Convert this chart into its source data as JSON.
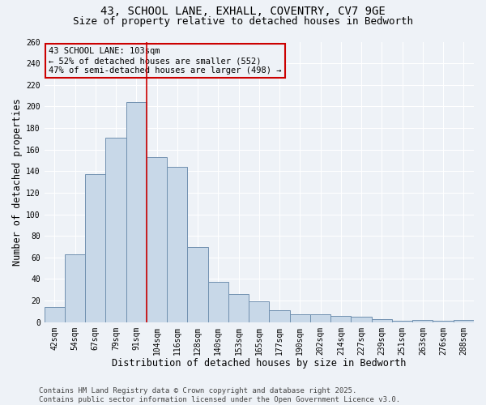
{
  "title1": "43, SCHOOL LANE, EXHALL, COVENTRY, CV7 9GE",
  "title2": "Size of property relative to detached houses in Bedworth",
  "xlabel": "Distribution of detached houses by size in Bedworth",
  "ylabel": "Number of detached properties",
  "categories": [
    "42sqm",
    "54sqm",
    "67sqm",
    "79sqm",
    "91sqm",
    "104sqm",
    "116sqm",
    "128sqm",
    "140sqm",
    "153sqm",
    "165sqm",
    "177sqm",
    "190sqm",
    "202sqm",
    "214sqm",
    "227sqm",
    "239sqm",
    "251sqm",
    "263sqm",
    "276sqm",
    "288sqm"
  ],
  "values": [
    14,
    63,
    137,
    171,
    204,
    153,
    144,
    70,
    37,
    26,
    19,
    11,
    7,
    7,
    6,
    5,
    3,
    1,
    2,
    1,
    2
  ],
  "bar_color": "#c8d8e8",
  "bar_edge_color": "#7090b0",
  "subject_line_color": "#cc0000",
  "annotation_text": "43 SCHOOL LANE: 103sqm\n← 52% of detached houses are smaller (552)\n47% of semi-detached houses are larger (498) →",
  "annotation_box_color": "#cc0000",
  "annotation_text_color": "#000000",
  "ylim": [
    0,
    260
  ],
  "yticks": [
    0,
    20,
    40,
    60,
    80,
    100,
    120,
    140,
    160,
    180,
    200,
    220,
    240,
    260
  ],
  "background_color": "#eef2f7",
  "grid_color": "#ffffff",
  "footer1": "Contains HM Land Registry data © Crown copyright and database right 2025.",
  "footer2": "Contains public sector information licensed under the Open Government Licence v3.0.",
  "title_fontsize": 10,
  "subtitle_fontsize": 9,
  "axis_label_fontsize": 8.5,
  "tick_fontsize": 7,
  "annotation_fontsize": 7.5,
  "footer_fontsize": 6.5
}
